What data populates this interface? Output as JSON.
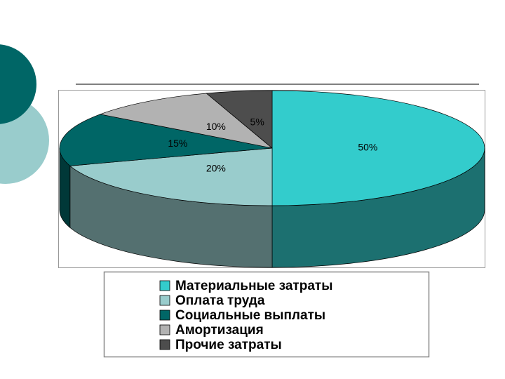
{
  "chart_data": {
    "type": "pie3d",
    "categories": [
      "Материальные затраты",
      "Оплата труда",
      "Социальные выплаты",
      "Амортизация",
      "Прочие затраты"
    ],
    "values": [
      50,
      20,
      15,
      10,
      5
    ],
    "value_labels": [
      "50%",
      "20%",
      "15%",
      "10%",
      "5%"
    ],
    "colors": [
      "#33CCCC",
      "#99CCCC",
      "#006666",
      "#B2B2B2",
      "#4D4D4D"
    ],
    "legend": "bottom"
  }
}
